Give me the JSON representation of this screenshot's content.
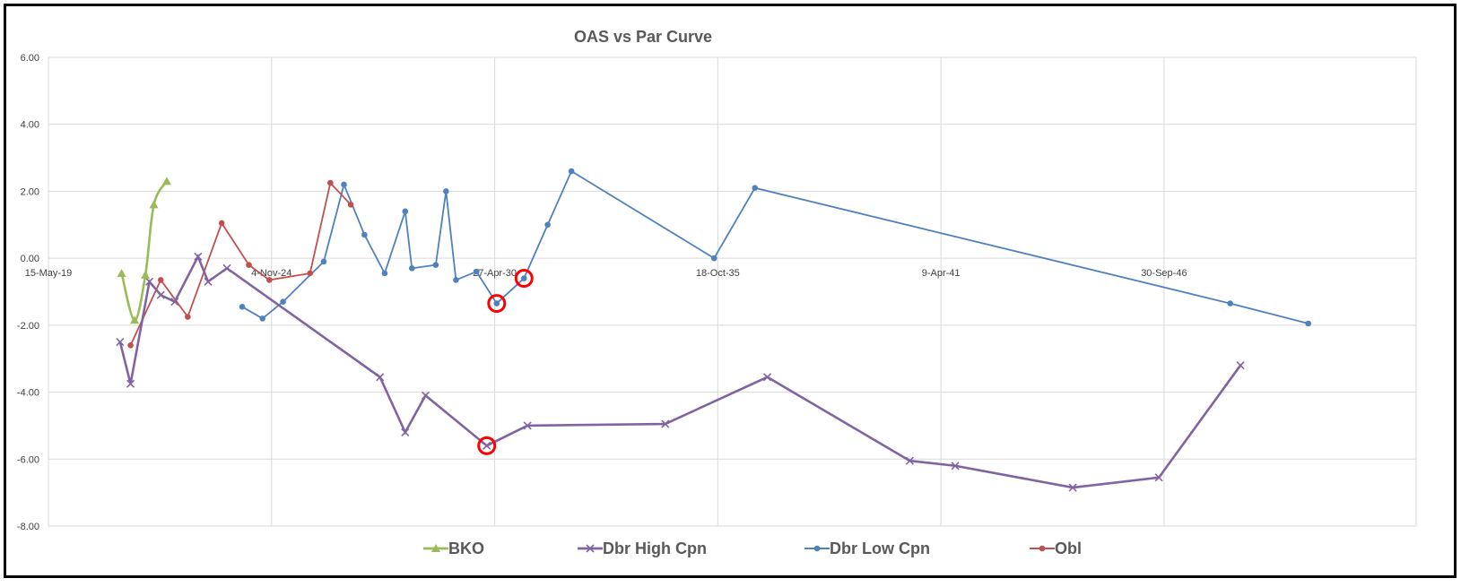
{
  "chart_data": {
    "type": "scatter",
    "title": "OAS vs Par Curve",
    "xlabel": "",
    "ylabel": "",
    "grid": true,
    "legend_position": "bottom",
    "x_axis": {
      "type": "date",
      "min": "2019-05-15",
      "max": "2052-12-07",
      "ticks": [
        "2019-05-15",
        "2024-11-04",
        "2030-04-27",
        "2035-10-18",
        "2041-04-09",
        "2046-09-30"
      ],
      "tick_labels": [
        "15-May-19",
        "4-Nov-24",
        "27-Apr-30",
        "18-Oct-35",
        "9-Apr-41",
        "30-Sep-46"
      ]
    },
    "y_axis": {
      "min": -8,
      "max": 6,
      "ticks": [
        -8,
        -6,
        -4,
        -2,
        0,
        2,
        4,
        6
      ],
      "tick_labels": [
        "-8.00",
        "-6.00",
        "-4.00",
        "-2.00",
        "0.00",
        "2.00",
        "4.00",
        "6.00"
      ]
    },
    "series": [
      {
        "name": "BKO",
        "color": "#9BBB59",
        "marker": "triangle",
        "line": "smooth",
        "points": [
          [
            "2021-03-01",
            -0.45
          ],
          [
            "2021-06-25",
            -1.85
          ],
          [
            "2021-09-30",
            -0.5
          ],
          [
            "2021-12-15",
            1.6
          ],
          [
            "2022-04-10",
            2.3
          ]
        ]
      },
      {
        "name": "Dbr High Cpn",
        "color": "#8064A2",
        "marker": "x",
        "line": "straight",
        "points": [
          [
            "2021-02-15",
            -2.5
          ],
          [
            "2021-05-20",
            -3.75
          ],
          [
            "2021-11-05",
            -0.7
          ],
          [
            "2022-02-15",
            -1.1
          ],
          [
            "2022-06-20",
            -1.3
          ],
          [
            "2023-01-15",
            0.05
          ],
          [
            "2023-04-15",
            -0.7
          ],
          [
            "2023-10-01",
            -0.3
          ],
          [
            "2027-07-04",
            -3.55
          ],
          [
            "2028-02-15",
            -5.2
          ],
          [
            "2028-08-15",
            -4.1
          ],
          [
            "2030-02-15",
            -5.6
          ],
          [
            "2031-02-15",
            -5.0
          ],
          [
            "2034-07-04",
            -4.95
          ],
          [
            "2037-01-04",
            -3.55
          ],
          [
            "2040-07-04",
            -6.05
          ],
          [
            "2041-08-15",
            -6.2
          ],
          [
            "2044-07-04",
            -6.85
          ],
          [
            "2046-08-15",
            -6.55
          ],
          [
            "2048-08-15",
            -3.2
          ]
        ]
      },
      {
        "name": "Dbr Low Cpn",
        "color": "#4F81BD",
        "marker": "circle",
        "line": "straight",
        "points": [
          [
            "2024-02-15",
            -1.45
          ],
          [
            "2024-08-15",
            -1.8
          ],
          [
            "2025-02-15",
            -1.3
          ],
          [
            "2026-02-15",
            -0.1
          ],
          [
            "2026-08-15",
            2.2
          ],
          [
            "2027-02-15",
            0.7
          ],
          [
            "2027-08-15",
            -0.45
          ],
          [
            "2028-02-15",
            1.4
          ],
          [
            "2028-04-15",
            -0.3
          ],
          [
            "2028-11-15",
            -0.2
          ],
          [
            "2029-02-15",
            2.0
          ],
          [
            "2029-05-15",
            -0.65
          ],
          [
            "2029-11-15",
            -0.4
          ],
          [
            "2030-05-15",
            -1.35
          ],
          [
            "2031-01-15",
            -0.6
          ],
          [
            "2031-08-15",
            1.0
          ],
          [
            "2032-03-15",
            2.6
          ],
          [
            "2035-09-15",
            0.0
          ],
          [
            "2036-09-15",
            2.1
          ],
          [
            "2048-05-15",
            -1.35
          ],
          [
            "2050-04-15",
            -1.95
          ]
        ]
      },
      {
        "name": "Obl",
        "color": "#C0504D",
        "marker": "circle",
        "line": "straight",
        "points": [
          [
            "2021-05-20",
            -2.6
          ],
          [
            "2022-02-15",
            -0.65
          ],
          [
            "2022-10-15",
            -1.75
          ],
          [
            "2023-08-15",
            1.05
          ],
          [
            "2024-04-15",
            -0.2
          ],
          [
            "2024-10-15",
            -0.65
          ],
          [
            "2025-10-15",
            -0.45
          ],
          [
            "2026-04-15",
            2.25
          ],
          [
            "2026-10-15",
            1.6
          ]
        ]
      }
    ],
    "annotations": [
      {
        "kind": "highlight-circle",
        "color": "#FF0000",
        "series": "Dbr Low Cpn",
        "x": "2030-05-15",
        "y": -1.35
      },
      {
        "kind": "highlight-circle",
        "color": "#FF0000",
        "series": "Dbr Low Cpn",
        "x": "2031-01-15",
        "y": -0.6
      },
      {
        "kind": "highlight-circle",
        "color": "#FF0000",
        "series": "Dbr High Cpn",
        "x": "2030-02-15",
        "y": -5.6
      }
    ],
    "colors": {
      "grid": "#D9D9D9",
      "axis_text": "#404040",
      "title": "#595959",
      "frame": "#000000"
    }
  }
}
